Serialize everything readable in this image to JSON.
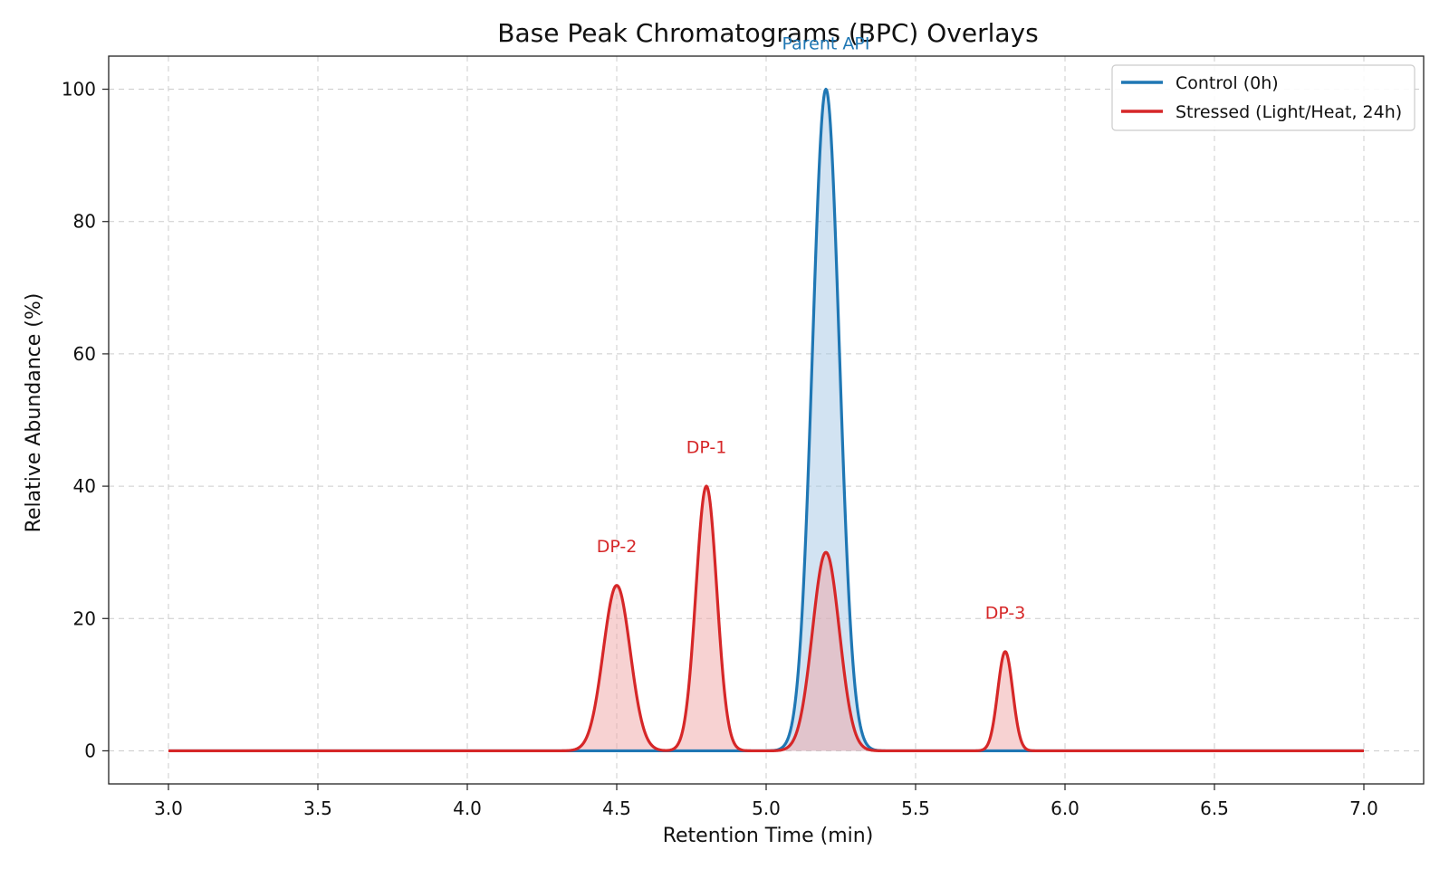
{
  "chart_data": {
    "type": "line",
    "title": "Base Peak Chromatograms (BPC) Overlays",
    "xlabel": "Retention Time (min)",
    "ylabel": "Relative Abundance (%)",
    "xlim": [
      2.8,
      7.2
    ],
    "ylim": [
      -5,
      105
    ],
    "x_ticks": [
      "3.0",
      "3.5",
      "4.0",
      "4.5",
      "5.0",
      "5.5",
      "6.0",
      "6.5",
      "7.0"
    ],
    "y_ticks": [
      "0",
      "20",
      "40",
      "60",
      "80",
      "100"
    ],
    "x_tick_values": [
      3.0,
      3.5,
      4.0,
      4.5,
      5.0,
      5.5,
      6.0,
      6.5,
      7.0
    ],
    "y_tick_values": [
      0,
      20,
      40,
      60,
      80,
      100
    ],
    "grid": true,
    "legend_position": "top-right",
    "x_range": [
      3.0,
      7.0
    ],
    "series": [
      {
        "name": "Control (0h)",
        "color": "#1f77b4",
        "fill_color": "#a6c8e6",
        "peaks": [
          {
            "rt": 5.2,
            "height": 100,
            "sigma": 0.045
          }
        ]
      },
      {
        "name": "Stressed (Light/Heat, 24h)",
        "color": "#d62728",
        "fill_color": "#f0a5a6",
        "peaks": [
          {
            "rt": 4.5,
            "height": 25,
            "sigma": 0.045
          },
          {
            "rt": 4.8,
            "height": 40,
            "sigma": 0.035
          },
          {
            "rt": 5.2,
            "height": 30,
            "sigma": 0.045
          },
          {
            "rt": 5.8,
            "height": 15,
            "sigma": 0.025
          }
        ]
      }
    ],
    "annotations": [
      {
        "text": "Parent API",
        "x": 5.2,
        "y": 106,
        "color": "#1f77b4"
      },
      {
        "text": "DP-1",
        "x": 4.8,
        "y": 45,
        "color": "#d62728"
      },
      {
        "text": "DP-2",
        "x": 4.5,
        "y": 30,
        "color": "#d62728"
      },
      {
        "text": "DP-3",
        "x": 5.8,
        "y": 20,
        "color": "#d62728"
      }
    ]
  }
}
